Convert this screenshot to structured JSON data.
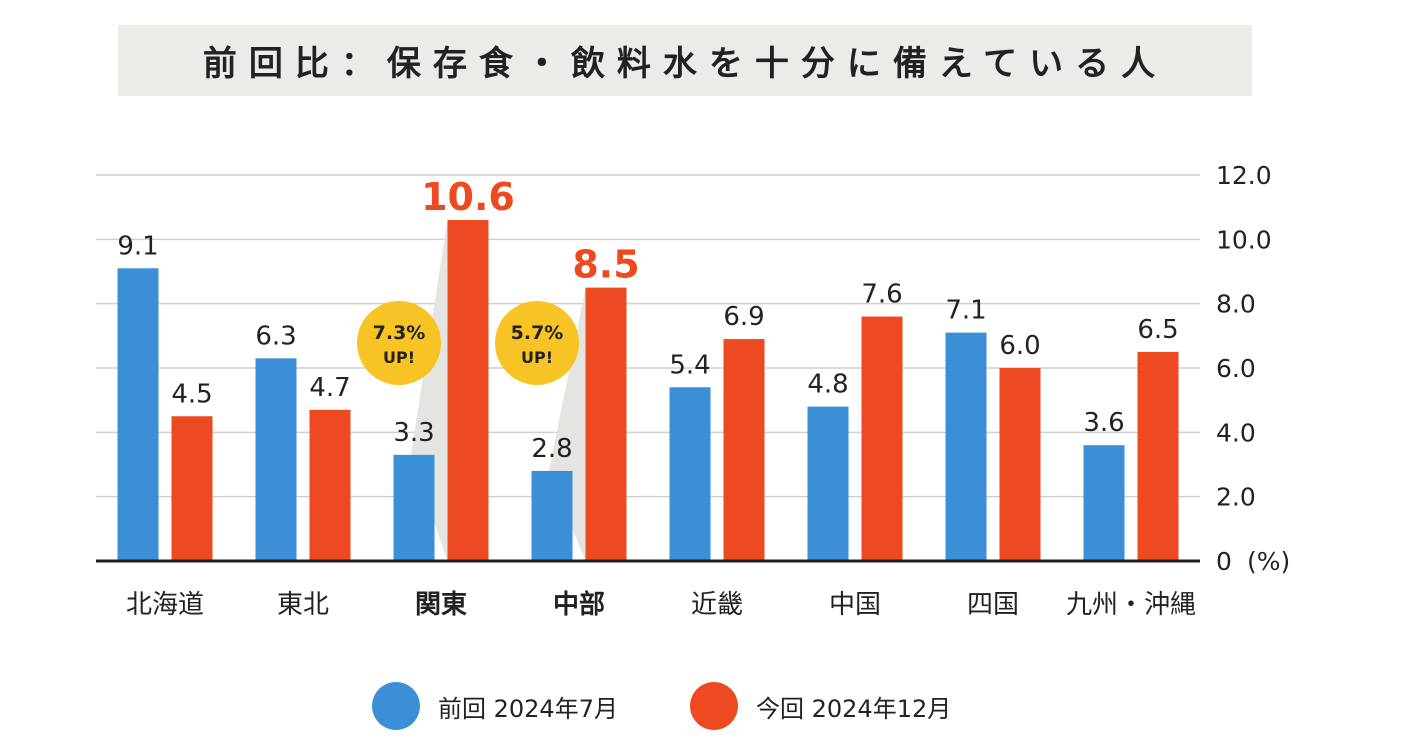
{
  "title": "前回比：保存食・飲料水を十分に備えている人",
  "colors": {
    "previous": "#3a8fd6",
    "current": "#ee4a22",
    "highlight_label": "#ee4a22",
    "callout": "#f7c325",
    "grid": "#cfcfcf",
    "axis": "#222222",
    "wedge": "#e4e4e0"
  },
  "chart_data": {
    "type": "bar",
    "categories": [
      "北海道",
      "東北",
      "関東",
      "中部",
      "近畿",
      "中国",
      "四国",
      "九州・沖縄"
    ],
    "bold_categories": [
      "関東",
      "中部"
    ],
    "series": [
      {
        "name": "前回 2024年7月",
        "values": [
          9.1,
          6.3,
          3.3,
          2.8,
          5.4,
          4.8,
          7.1,
          3.6
        ]
      },
      {
        "name": "今回 2024年12月",
        "values": [
          4.5,
          4.7,
          10.6,
          8.5,
          6.9,
          7.6,
          6.0,
          6.5
        ]
      }
    ],
    "value_labels": {
      "previous": [
        "9.1",
        "6.3",
        "3.3",
        "2.8",
        "5.4",
        "4.8",
        "7.1",
        "3.6"
      ],
      "current": [
        "4.5",
        "4.7",
        "10.6",
        "8.5",
        "6.9",
        "7.6",
        "6.0",
        "6.5"
      ]
    },
    "highlighted": [
      "関東",
      "中部"
    ],
    "callouts": [
      {
        "category": "関東",
        "value": "7.3%",
        "suffix": "UP!"
      },
      {
        "category": "中部",
        "value": "5.7%",
        "suffix": "UP!"
      }
    ],
    "y_axis": {
      "position": "right",
      "ticks": [
        "12.0",
        "10.0",
        "8.0",
        "6.0",
        "4.0",
        "2.0",
        "0"
      ],
      "tick_values": [
        12,
        10,
        8,
        6,
        4,
        2,
        0
      ],
      "unit": "(%)"
    },
    "ylim": [
      0,
      12
    ],
    "grid": true,
    "legend_position": "bottom"
  },
  "legend": [
    {
      "label": "前回 2024年7月"
    },
    {
      "label": "今回 2024年12月"
    }
  ]
}
